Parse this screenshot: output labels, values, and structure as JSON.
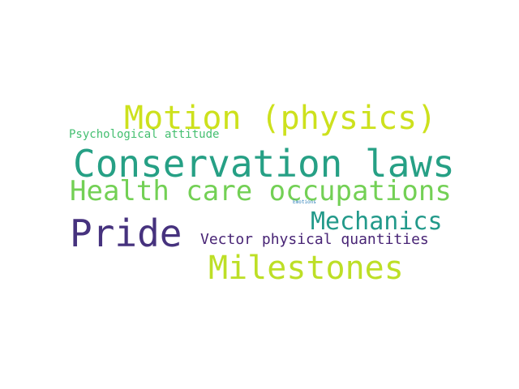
{
  "word_cloud": {
    "words": [
      {
        "id": "motion",
        "text": "Motion (physics)",
        "color": "#cde11d"
      },
      {
        "id": "psych",
        "text": "Psychological attitude",
        "color": "#44bf70"
      },
      {
        "id": "conservation",
        "text": "Conservation laws",
        "color": "#26a085"
      },
      {
        "id": "health",
        "text": "Health care occupations",
        "color": "#73d055"
      },
      {
        "id": "emotions",
        "text": "Emotions",
        "color": "#2c7fb8"
      },
      {
        "id": "mechanics",
        "text": "Mechanics",
        "color": "#22998a"
      },
      {
        "id": "pride",
        "text": "Pride",
        "color": "#46327e"
      },
      {
        "id": "vector",
        "text": "Vector physical quantities",
        "color": "#482475"
      },
      {
        "id": "milestones",
        "text": "Milestones",
        "color": "#bddf26"
      }
    ]
  }
}
